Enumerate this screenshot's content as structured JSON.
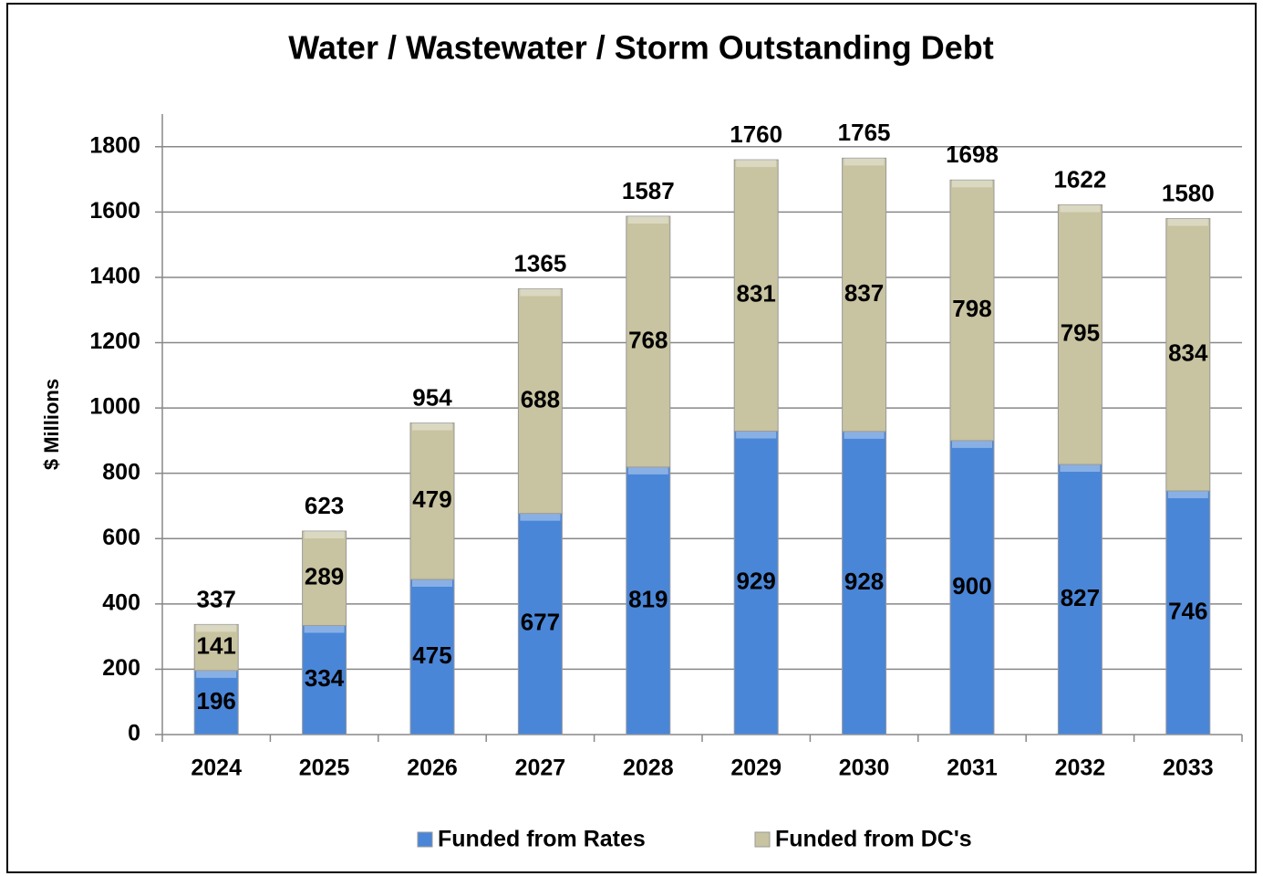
{
  "chart_data": {
    "type": "stacked_bar",
    "title": "Water / Wastewater / Storm Outstanding Debt",
    "y_label": "$ Millions",
    "categories": [
      "2024",
      "2025",
      "2026",
      "2027",
      "2028",
      "2029",
      "2030",
      "2031",
      "2032",
      "2033"
    ],
    "series": [
      {
        "name": "Funded from Rates",
        "color": "#4a86d8",
        "values": [
          196,
          334,
          475,
          677,
          819,
          929,
          928,
          900,
          827,
          746
        ]
      },
      {
        "name": "Funded from DC's",
        "color": "#c8c3a0",
        "values": [
          141,
          289,
          479,
          688,
          768,
          831,
          837,
          798,
          795,
          834
        ]
      }
    ],
    "totals": [
      337,
      623,
      954,
      1365,
      1587,
      1760,
      1765,
      1698,
      1622,
      1580
    ],
    "ylim": [
      0,
      1900
    ],
    "yticks": [
      0,
      200,
      400,
      600,
      800,
      1000,
      1200,
      1400,
      1600,
      1800
    ],
    "grid": true,
    "legend": "bottom"
  }
}
